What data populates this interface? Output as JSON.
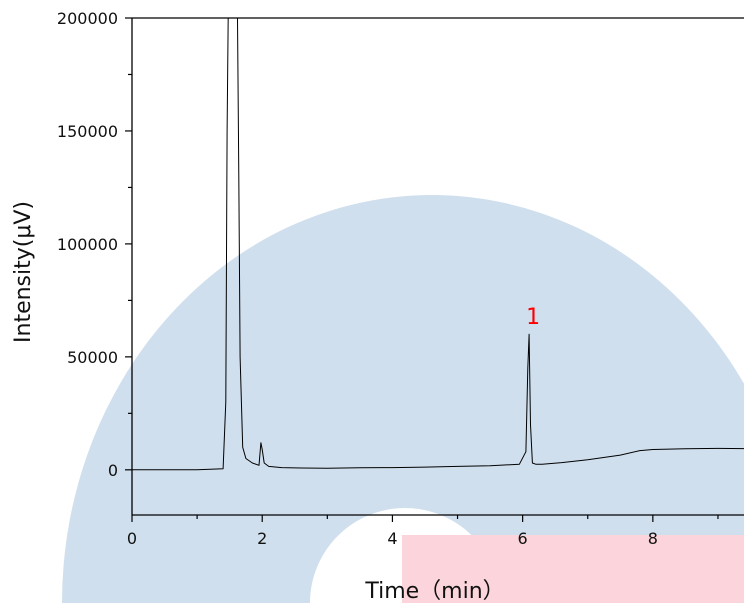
{
  "chart_data": {
    "type": "line",
    "xlabel": "Time（min）",
    "ylabel": "Intensity(μV)",
    "xlim": [
      0,
      9.4
    ],
    "ylim": [
      -20000,
      200000
    ],
    "x_ticks": [
      "0",
      "2",
      "4",
      "6",
      "8"
    ],
    "y_ticks": [
      "0",
      "50000",
      "100000",
      "150000",
      "200000"
    ],
    "x_tick_values": [
      0,
      2,
      4,
      6,
      8
    ],
    "y_tick_values": [
      0,
      50000,
      100000,
      150000,
      200000
    ],
    "grid": false,
    "series": [
      {
        "color": "#000000",
        "x": [
          0,
          1.0,
          1.4,
          1.44,
          1.46,
          1.48,
          1.5,
          1.55,
          1.6,
          1.62,
          1.64,
          1.66,
          1.7,
          1.75,
          1.85,
          1.95,
          1.98,
          2.0,
          2.03,
          2.1,
          2.3,
          2.6,
          3.0,
          3.5,
          4.0,
          4.5,
          5.0,
          5.5,
          5.95,
          6.05,
          6.08,
          6.1,
          6.12,
          6.15,
          6.2,
          6.3,
          6.6,
          7.0,
          7.5,
          7.8,
          8.0,
          8.5,
          9.0,
          9.4
        ],
        "y": [
          0,
          0,
          500,
          30000,
          150000,
          210000,
          210000,
          210000,
          210000,
          200000,
          130000,
          50000,
          10000,
          5000,
          3000,
          2000,
          12000,
          9000,
          3000,
          1500,
          1000,
          800,
          700,
          900,
          1000,
          1200,
          1500,
          1800,
          2500,
          8000,
          45000,
          60000,
          20000,
          3000,
          2500,
          2500,
          3200,
          4500,
          6500,
          8500,
          9000,
          9300,
          9500,
          9400
        ]
      }
    ],
    "annotations": [
      {
        "text": "1",
        "x": 6.1,
        "y": 62000,
        "color": "#ff0000"
      }
    ]
  },
  "watermark": {
    "ring_color": "#d0dfee",
    "rect_color": "#fcd5dc"
  }
}
